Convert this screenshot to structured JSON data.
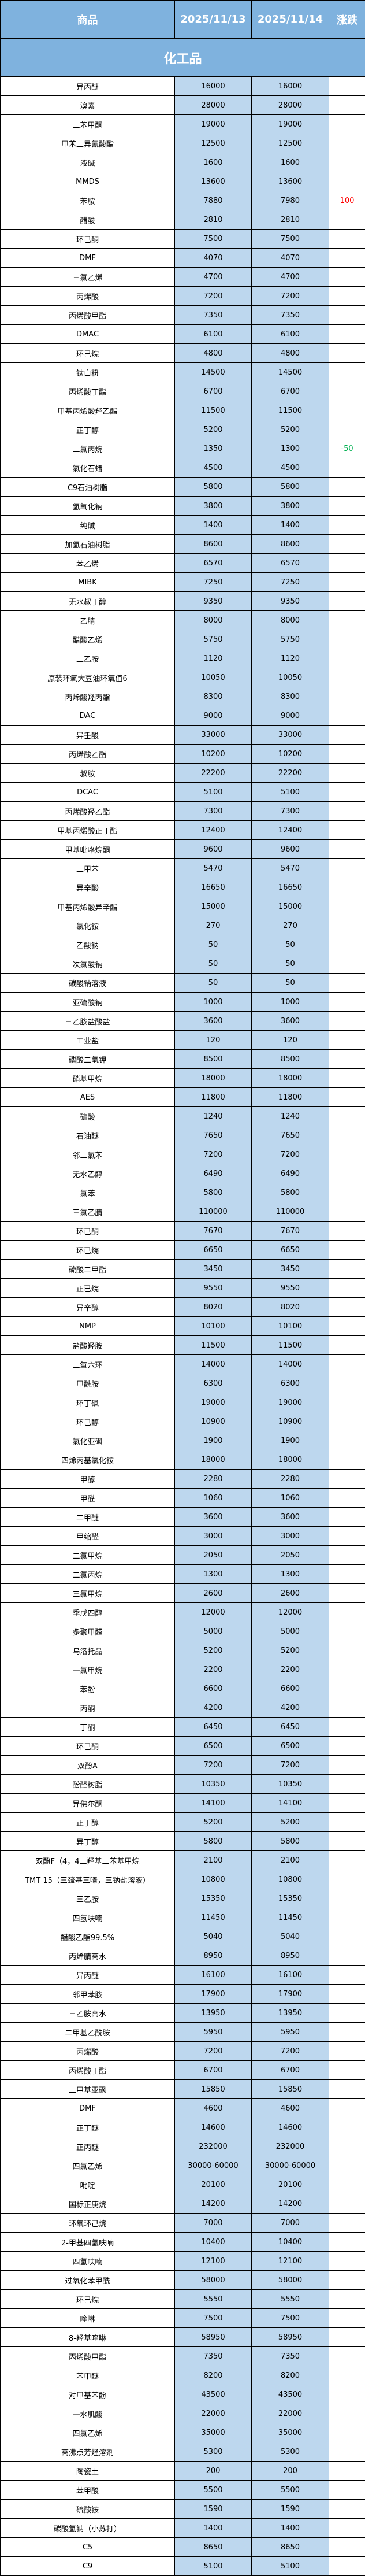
{
  "header": {
    "product": "商品",
    "date1": "2025/11/13",
    "date2": "2025/11/14",
    "change": "涨跌"
  },
  "category": "化工品",
  "colors": {
    "header_bg": "#7FB2DE",
    "value_bg": "#BDD7EE",
    "up": "#FF0000",
    "down": "#00B050"
  },
  "rows": [
    {
      "name": "异丙醚",
      "d1": "16000",
      "d2": "16000",
      "chg": ""
    },
    {
      "name": "溴素",
      "d1": "28000",
      "d2": "28000",
      "chg": ""
    },
    {
      "name": "二苯甲酮",
      "d1": "19000",
      "d2": "19000",
      "chg": ""
    },
    {
      "name": "甲苯二异氰酸酯",
      "d1": "12500",
      "d2": "12500",
      "chg": ""
    },
    {
      "name": "液碱",
      "d1": "1600",
      "d2": "1600",
      "chg": ""
    },
    {
      "name": "MMDS",
      "d1": "13600",
      "d2": "13600",
      "chg": ""
    },
    {
      "name": "苯胺",
      "d1": "7880",
      "d2": "7980",
      "chg": "100"
    },
    {
      "name": "醋酸",
      "d1": "2810",
      "d2": "2810",
      "chg": ""
    },
    {
      "name": "环己酮",
      "d1": "7500",
      "d2": "7500",
      "chg": ""
    },
    {
      "name": "DMF",
      "d1": "4070",
      "d2": "4070",
      "chg": ""
    },
    {
      "name": "三氯乙烯",
      "d1": "4700",
      "d2": "4700",
      "chg": ""
    },
    {
      "name": "丙烯酸",
      "d1": "7200",
      "d2": "7200",
      "chg": ""
    },
    {
      "name": "丙烯酸甲酯",
      "d1": "7350",
      "d2": "7350",
      "chg": ""
    },
    {
      "name": "DMAC",
      "d1": "6100",
      "d2": "6100",
      "chg": ""
    },
    {
      "name": "环己烷",
      "d1": "4800",
      "d2": "4800",
      "chg": ""
    },
    {
      "name": "钛白粉",
      "d1": "14500",
      "d2": "14500",
      "chg": ""
    },
    {
      "name": "丙烯酸丁酯",
      "d1": "6700",
      "d2": "6700",
      "chg": ""
    },
    {
      "name": "甲基丙烯酸羟乙酯",
      "d1": "11500",
      "d2": "11500",
      "chg": ""
    },
    {
      "name": "正丁醇",
      "d1": "5200",
      "d2": "5200",
      "chg": ""
    },
    {
      "name": "二氯丙烷",
      "d1": "1350",
      "d2": "1300",
      "chg": "-50"
    },
    {
      "name": "氯化石蜡",
      "d1": "4500",
      "d2": "4500",
      "chg": ""
    },
    {
      "name": "C9石油树脂",
      "d1": "5800",
      "d2": "5800",
      "chg": ""
    },
    {
      "name": "氢氧化钠",
      "d1": "3800",
      "d2": "3800",
      "chg": ""
    },
    {
      "name": "纯碱",
      "d1": "1400",
      "d2": "1400",
      "chg": ""
    },
    {
      "name": "加氢石油树脂",
      "d1": "8600",
      "d2": "8600",
      "chg": ""
    },
    {
      "name": "苯乙烯",
      "d1": "6570",
      "d2": "6570",
      "chg": ""
    },
    {
      "name": "MIBK",
      "d1": "7250",
      "d2": "7250",
      "chg": ""
    },
    {
      "name": "无水叔丁醇",
      "d1": "9350",
      "d2": "9350",
      "chg": ""
    },
    {
      "name": "乙腈",
      "d1": "8000",
      "d2": "8000",
      "chg": ""
    },
    {
      "name": "醋酸乙烯",
      "d1": "5750",
      "d2": "5750",
      "chg": ""
    },
    {
      "name": "二乙胺",
      "d1": "1120",
      "d2": "1120",
      "chg": ""
    },
    {
      "name": "原装环氧大豆油环氧值6",
      "d1": "10050",
      "d2": "10050",
      "chg": ""
    },
    {
      "name": "丙烯酸羟丙酯",
      "d1": "8300",
      "d2": "8300",
      "chg": ""
    },
    {
      "name": "DAC",
      "d1": "9000",
      "d2": "9000",
      "chg": ""
    },
    {
      "name": "异壬酸",
      "d1": "33000",
      "d2": "33000",
      "chg": ""
    },
    {
      "name": "丙烯酸乙酯",
      "d1": "10200",
      "d2": "10200",
      "chg": ""
    },
    {
      "name": "叔胺",
      "d1": "22200",
      "d2": "22200",
      "chg": ""
    },
    {
      "name": "DCAC",
      "d1": "5100",
      "d2": "5100",
      "chg": ""
    },
    {
      "name": "丙烯酸羟乙酯",
      "d1": "7300",
      "d2": "7300",
      "chg": ""
    },
    {
      "name": "甲基丙烯酸正丁酯",
      "d1": "12400",
      "d2": "12400",
      "chg": ""
    },
    {
      "name": "甲基吡咯烷酮",
      "d1": "9600",
      "d2": "9600",
      "chg": ""
    },
    {
      "name": "二甲苯",
      "d1": "5470",
      "d2": "5470",
      "chg": ""
    },
    {
      "name": "异辛酸",
      "d1": "16650",
      "d2": "16650",
      "chg": ""
    },
    {
      "name": "甲基丙烯酸异辛酯",
      "d1": "15000",
      "d2": "15000",
      "chg": ""
    },
    {
      "name": "氯化铵",
      "d1": "270",
      "d2": "270",
      "chg": ""
    },
    {
      "name": "乙酸钠",
      "d1": "50",
      "d2": "50",
      "chg": ""
    },
    {
      "name": "次氯酸钠",
      "d1": "50",
      "d2": "50",
      "chg": ""
    },
    {
      "name": "碳酸钠溶液",
      "d1": "50",
      "d2": "50",
      "chg": ""
    },
    {
      "name": "亚硫酸钠",
      "d1": "1000",
      "d2": "1000",
      "chg": ""
    },
    {
      "name": "三乙胺盐酸盐",
      "d1": "3600",
      "d2": "3600",
      "chg": ""
    },
    {
      "name": "工业盐",
      "d1": "120",
      "d2": "120",
      "chg": ""
    },
    {
      "name": "磷酸二氢钾",
      "d1": "8500",
      "d2": "8500",
      "chg": ""
    },
    {
      "name": "硝基甲烷",
      "d1": "18000",
      "d2": "18000",
      "chg": ""
    },
    {
      "name": "AES",
      "d1": "11800",
      "d2": "11800",
      "chg": ""
    },
    {
      "name": "硫酸",
      "d1": "1240",
      "d2": "1240",
      "chg": ""
    },
    {
      "name": "石油醚",
      "d1": "7650",
      "d2": "7650",
      "chg": ""
    },
    {
      "name": "邻二氯苯",
      "d1": "7200",
      "d2": "7200",
      "chg": ""
    },
    {
      "name": "无水乙醇",
      "d1": "6490",
      "d2": "6490",
      "chg": ""
    },
    {
      "name": "氯苯",
      "d1": "5800",
      "d2": "5800",
      "chg": ""
    },
    {
      "name": "三氯乙腈",
      "d1": "110000",
      "d2": "110000",
      "chg": ""
    },
    {
      "name": "环已酮",
      "d1": "7670",
      "d2": "7670",
      "chg": ""
    },
    {
      "name": "环已烷",
      "d1": "6650",
      "d2": "6650",
      "chg": ""
    },
    {
      "name": "硫酸二甲酯",
      "d1": "3450",
      "d2": "3450",
      "chg": ""
    },
    {
      "name": "正已烷",
      "d1": "9550",
      "d2": "9550",
      "chg": ""
    },
    {
      "name": "异辛醇",
      "d1": "8020",
      "d2": "8020",
      "chg": ""
    },
    {
      "name": "NMP",
      "d1": "10100",
      "d2": "10100",
      "chg": ""
    },
    {
      "name": "盐酸羟胺",
      "d1": "11500",
      "d2": "11500",
      "chg": ""
    },
    {
      "name": "二氧六环",
      "d1": "14000",
      "d2": "14000",
      "chg": ""
    },
    {
      "name": "甲酰胺",
      "d1": "6300",
      "d2": "6300",
      "chg": ""
    },
    {
      "name": "环丁砜",
      "d1": "19000",
      "d2": "19000",
      "chg": ""
    },
    {
      "name": "环己醇",
      "d1": "10900",
      "d2": "10900",
      "chg": ""
    },
    {
      "name": "氯化亚砜",
      "d1": "1900",
      "d2": "1900",
      "chg": ""
    },
    {
      "name": "四烯丙基氯化铵",
      "d1": "18000",
      "d2": "18000",
      "chg": ""
    },
    {
      "name": "甲醇",
      "d1": "2280",
      "d2": "2280",
      "chg": ""
    },
    {
      "name": "甲醛",
      "d1": "1060",
      "d2": "1060",
      "chg": ""
    },
    {
      "name": "二甲醚",
      "d1": "3600",
      "d2": "3600",
      "chg": ""
    },
    {
      "name": "甲缩醛",
      "d1": "3000",
      "d2": "3000",
      "chg": ""
    },
    {
      "name": "二氯甲烷",
      "d1": "2050",
      "d2": "2050",
      "chg": ""
    },
    {
      "name": "二氯丙烷",
      "d1": "1300",
      "d2": "1300",
      "chg": ""
    },
    {
      "name": "三氯甲烷",
      "d1": "2600",
      "d2": "2600",
      "chg": ""
    },
    {
      "name": "季戊四醇",
      "d1": "12000",
      "d2": "12000",
      "chg": ""
    },
    {
      "name": "多聚甲醛",
      "d1": "5000",
      "d2": "5000",
      "chg": ""
    },
    {
      "name": "乌洛托品",
      "d1": "5200",
      "d2": "5200",
      "chg": ""
    },
    {
      "name": "一氯甲烷",
      "d1": "2200",
      "d2": "2200",
      "chg": ""
    },
    {
      "name": "苯酚",
      "d1": "6600",
      "d2": "6600",
      "chg": ""
    },
    {
      "name": "丙酮",
      "d1": "4200",
      "d2": "4200",
      "chg": ""
    },
    {
      "name": "丁酮",
      "d1": "6450",
      "d2": "6450",
      "chg": ""
    },
    {
      "name": "环己酮",
      "d1": "6500",
      "d2": "6500",
      "chg": ""
    },
    {
      "name": "双酚A",
      "d1": "7200",
      "d2": "7200",
      "chg": ""
    },
    {
      "name": "酚醛树脂",
      "d1": "10350",
      "d2": "10350",
      "chg": ""
    },
    {
      "name": "异佛尔酮",
      "d1": "14100",
      "d2": "14100",
      "chg": ""
    },
    {
      "name": "正丁醇",
      "d1": "5200",
      "d2": "5200",
      "chg": ""
    },
    {
      "name": "异丁醇",
      "d1": "5800",
      "d2": "5800",
      "chg": ""
    },
    {
      "name": "双酚F（4，4二羟基二苯基甲烷",
      "d1": "2100",
      "d2": "2100",
      "chg": ""
    },
    {
      "name": "TMT 15（三巯基三嗪，三钠盐溶液）",
      "d1": "10800",
      "d2": "10800",
      "chg": ""
    },
    {
      "name": "三乙胺",
      "d1": "15350",
      "d2": "15350",
      "chg": ""
    },
    {
      "name": "四氢呋喃",
      "d1": "11450",
      "d2": "11450",
      "chg": ""
    },
    {
      "name": "醋酸乙酯99.5%",
      "d1": "5040",
      "d2": "5040",
      "chg": ""
    },
    {
      "name": "丙烯腈高水",
      "d1": "8950",
      "d2": "8950",
      "chg": ""
    },
    {
      "name": "异丙醚",
      "d1": "16100",
      "d2": "16100",
      "chg": ""
    },
    {
      "name": "邻甲苯胺",
      "d1": "17900",
      "d2": "17900",
      "chg": ""
    },
    {
      "name": "三乙胺高水",
      "d1": "13950",
      "d2": "13950",
      "chg": ""
    },
    {
      "name": "二甲基乙酰胺",
      "d1": "5950",
      "d2": "5950",
      "chg": ""
    },
    {
      "name": "丙烯酸",
      "d1": "7200",
      "d2": "7200",
      "chg": ""
    },
    {
      "name": "丙烯酸丁酯",
      "d1": "6700",
      "d2": "6700",
      "chg": ""
    },
    {
      "name": "二甲基亚砜",
      "d1": "15850",
      "d2": "15850",
      "chg": ""
    },
    {
      "name": "DMF",
      "d1": "4600",
      "d2": "4600",
      "chg": ""
    },
    {
      "name": "正丁醚",
      "d1": "14600",
      "d2": "14600",
      "chg": ""
    },
    {
      "name": "正丙醚",
      "d1": "232000",
      "d2": "232000",
      "chg": ""
    },
    {
      "name": "四氯乙烯",
      "d1": "30000-60000",
      "d2": "30000-60000",
      "chg": ""
    },
    {
      "name": "吡啶",
      "d1": "20100",
      "d2": "20100",
      "chg": ""
    },
    {
      "name": "国标正庚烷",
      "d1": "14200",
      "d2": "14200",
      "chg": ""
    },
    {
      "name": "环氧环己烷",
      "d1": "7000",
      "d2": "7000",
      "chg": ""
    },
    {
      "name": "2-甲基四氢呋喃",
      "d1": "10400",
      "d2": "10400",
      "chg": ""
    },
    {
      "name": "四氢呋喃",
      "d1": "12100",
      "d2": "12100",
      "chg": ""
    },
    {
      "name": "过氧化苯甲酰",
      "d1": "58000",
      "d2": "58000",
      "chg": ""
    },
    {
      "name": "环己烷",
      "d1": "5550",
      "d2": "5550",
      "chg": ""
    },
    {
      "name": "喹啉",
      "d1": "7500",
      "d2": "7500",
      "chg": ""
    },
    {
      "name": "8-羟基喹啉",
      "d1": "58950",
      "d2": "58950",
      "chg": ""
    },
    {
      "name": "丙烯酸甲酯",
      "d1": "7350",
      "d2": "7350",
      "chg": ""
    },
    {
      "name": "苯甲醚",
      "d1": "8200",
      "d2": "8200",
      "chg": ""
    },
    {
      "name": "对甲基苯酚",
      "d1": "43500",
      "d2": "43500",
      "chg": ""
    },
    {
      "name": "一水肌酸",
      "d1": "22000",
      "d2": "22000",
      "chg": ""
    },
    {
      "name": "四氯乙烯",
      "d1": "35000",
      "d2": "35000",
      "chg": ""
    },
    {
      "name": "高沸点芳烃溶剂",
      "d1": "5300",
      "d2": "5300",
      "chg": ""
    },
    {
      "name": "陶瓷土",
      "d1": "200",
      "d2": "200",
      "chg": ""
    },
    {
      "name": "苯甲酸",
      "d1": "5500",
      "d2": "5500",
      "chg": ""
    },
    {
      "name": "硫酸铵",
      "d1": "1590",
      "d2": "1590",
      "chg": ""
    },
    {
      "name": "碳酸氢钠（小苏打）",
      "d1": "1400",
      "d2": "1400",
      "chg": ""
    },
    {
      "name": "C5",
      "d1": "8650",
      "d2": "8650",
      "chg": ""
    },
    {
      "name": "C9",
      "d1": "5100",
      "d2": "5100",
      "chg": ""
    }
  ]
}
